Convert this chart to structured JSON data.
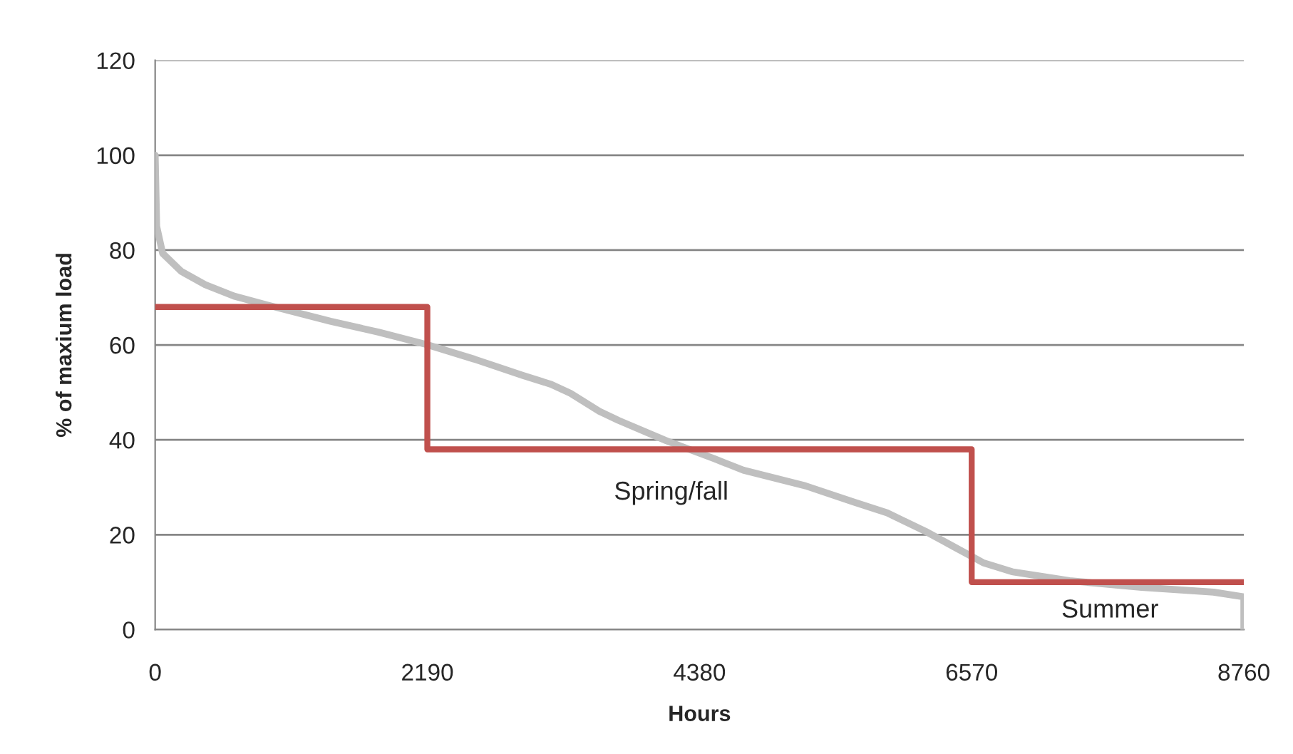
{
  "chart_data": {
    "type": "line",
    "xlabel": "Hours",
    "ylabel": "% of maxium load",
    "xlim": [
      0,
      8760
    ],
    "xticks": [
      0,
      2190,
      4380,
      6570,
      8760
    ],
    "ylim": [
      0,
      120
    ],
    "yticks": [
      0,
      20,
      40,
      60,
      80,
      100,
      120
    ],
    "grid": "y",
    "legend": false,
    "marker": "none",
    "line_style": "solid",
    "series": [
      {
        "color": "#bfbfbf",
        "x": [
          0,
          12,
          60,
          210,
          403,
          635,
          905,
          1410,
          1796,
          2183,
          2569,
          2955,
          3187,
          3342,
          3574,
          3728,
          4114,
          4501,
          4733,
          5233,
          5620,
          5890,
          6199,
          6431,
          6662,
          6894,
          7358,
          7937,
          8516,
          8760,
          8760
        ],
        "values": [
          100,
          85,
          79.3,
          75.5,
          72.7,
          70.3,
          68.4,
          65,
          62.7,
          60.1,
          57,
          53.6,
          51.7,
          49.8,
          46,
          44.1,
          39.8,
          36,
          33.6,
          30.3,
          26.9,
          24.6,
          20.7,
          17.4,
          14.1,
          12.2,
          10.3,
          8.9,
          7.9,
          6.9,
          0
        ]
      },
      {
        "type": "step",
        "color": "#c0504d",
        "x": [
          0,
          2190,
          6570,
          8760
        ],
        "values": [
          68,
          38,
          10,
          10
        ]
      }
    ],
    "annotations": [
      "Spring/fall",
      "Summer"
    ]
  }
}
